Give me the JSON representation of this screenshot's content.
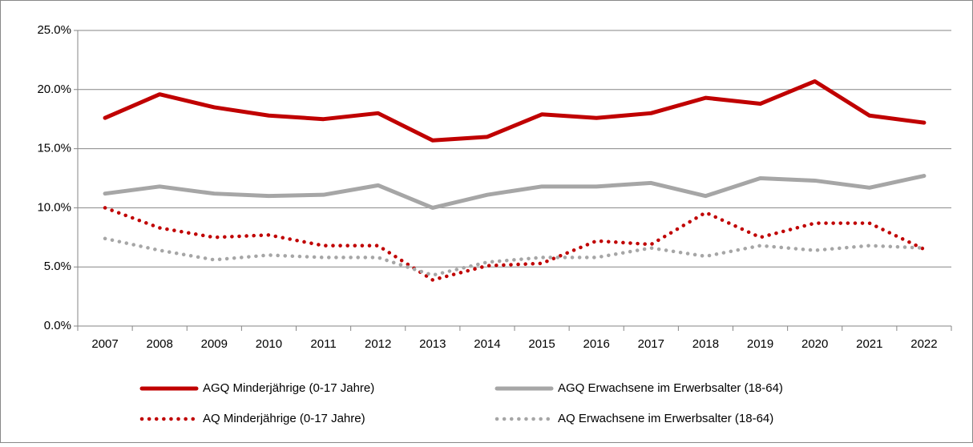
{
  "chart_data": {
    "type": "line",
    "categories": [
      "2007",
      "2008",
      "2009",
      "2010",
      "2011",
      "2012",
      "2013",
      "2014",
      "2015",
      "2016",
      "2017",
      "2018",
      "2019",
      "2020",
      "2021",
      "2022"
    ],
    "series": [
      {
        "name": "AGQ Minderjährige (0-17 Jahre)",
        "color": "#c00000",
        "style": "solid",
        "values": [
          17.6,
          19.6,
          18.5,
          17.8,
          17.5,
          18.0,
          15.7,
          16.0,
          17.9,
          17.6,
          18.0,
          19.3,
          18.8,
          20.7,
          17.8,
          17.2
        ]
      },
      {
        "name": "AGQ Erwachsene im Erwerbsalter (18-64)",
        "color": "#a6a6a6",
        "style": "solid",
        "values": [
          11.2,
          11.8,
          11.2,
          11.0,
          11.1,
          11.9,
          10.0,
          11.1,
          11.8,
          11.8,
          12.1,
          11.0,
          12.5,
          12.3,
          11.7,
          12.7
        ]
      },
      {
        "name": "AQ Minderjährige (0-17 Jahre)",
        "color": "#c00000",
        "style": "dotted",
        "values": [
          10.0,
          8.3,
          7.5,
          7.7,
          6.8,
          6.8,
          3.9,
          5.1,
          5.3,
          7.2,
          6.9,
          9.6,
          7.5,
          8.7,
          8.7,
          6.5
        ]
      },
      {
        "name": "AQ Erwachsene im Erwerbsalter (18-64)",
        "color": "#a6a6a6",
        "style": "dotted",
        "values": [
          7.4,
          6.4,
          5.6,
          6.0,
          5.8,
          5.8,
          4.3,
          5.4,
          5.8,
          5.8,
          6.6,
          5.9,
          6.8,
          6.4,
          6.8,
          6.6
        ]
      }
    ],
    "ylim": [
      0,
      25
    ],
    "yticks": [
      {
        "value": 0,
        "label": "0.0%"
      },
      {
        "value": 5,
        "label": "5.0%"
      },
      {
        "value": 10,
        "label": "10.0%"
      },
      {
        "value": 15,
        "label": "15.0%"
      },
      {
        "value": 20,
        "label": "20.0%"
      },
      {
        "value": 25,
        "label": "25.0%"
      }
    ],
    "grid": true,
    "legend": "bottom"
  }
}
